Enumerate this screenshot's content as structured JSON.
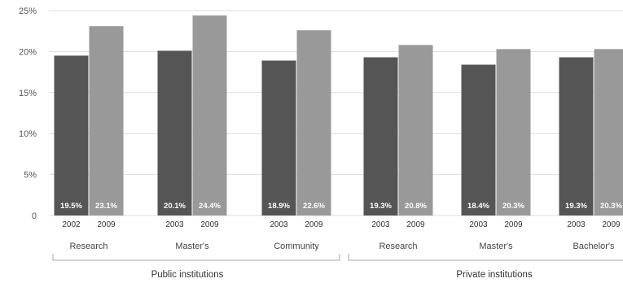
{
  "chart_data": {
    "type": "bar",
    "title": "",
    "xlabel": "",
    "ylabel": "",
    "ylim": [
      0,
      25
    ],
    "y_ticks": [
      "0",
      "5%",
      "10%",
      "15%",
      "20%",
      "25%"
    ],
    "grid": true,
    "legend": "none",
    "colors": {
      "first_year": "#555555",
      "second_year": "#999999",
      "grid": "#dddddd",
      "axis": "#aaaaaa"
    },
    "groups": [
      {
        "label": "Public institutions",
        "categories": [
          {
            "label": "Research",
            "years": [
              "2002",
              "2009"
            ],
            "values": [
              19.5,
              23.1
            ],
            "value_labels": [
              "19.5%",
              "23.1%"
            ]
          },
          {
            "label": "Master's",
            "years": [
              "2003",
              "2009"
            ],
            "values": [
              20.1,
              24.4
            ],
            "value_labels": [
              "20.1%",
              "24.4%"
            ]
          },
          {
            "label": "Community",
            "years": [
              "2003",
              "2009"
            ],
            "values": [
              18.9,
              22.6
            ],
            "value_labels": [
              "18.9%",
              "22.6%"
            ]
          }
        ]
      },
      {
        "label": "Private institutions",
        "categories": [
          {
            "label": "Research",
            "years": [
              "2003",
              "2009"
            ],
            "values": [
              19.3,
              20.8
            ],
            "value_labels": [
              "19.3%",
              "20.8%"
            ]
          },
          {
            "label": "Master's",
            "years": [
              "2003",
              "2009"
            ],
            "values": [
              18.4,
              20.3
            ],
            "value_labels": [
              "18.4%",
              "20.3%"
            ]
          },
          {
            "label": "Bachelor's",
            "years": [
              "2003",
              "2009"
            ],
            "values": [
              19.3,
              20.3
            ],
            "value_labels": [
              "19.3%",
              "20.3%"
            ]
          }
        ]
      }
    ]
  }
}
